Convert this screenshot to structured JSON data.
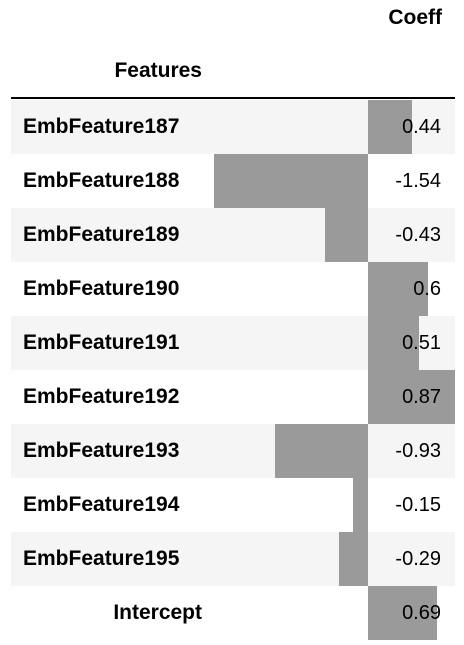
{
  "table": {
    "index_header": "Features",
    "column_header": "Coeff"
  },
  "chart_data": {
    "type": "table",
    "columns": [
      "Coeff"
    ],
    "bar_style": "in-cell bar, zero-aligned",
    "colors": {
      "bar": "#9a9a9a",
      "row_shade": "#f5f5f5"
    },
    "rows": [
      {
        "feature": "EmbFeature187",
        "value": 0.44,
        "label": "0.44"
      },
      {
        "feature": "EmbFeature188",
        "value": -1.54,
        "label": "-1.54"
      },
      {
        "feature": "EmbFeature189",
        "value": -0.43,
        "label": "-0.43"
      },
      {
        "feature": "EmbFeature190",
        "value": 0.6,
        "label": "0.6"
      },
      {
        "feature": "EmbFeature191",
        "value": 0.51,
        "label": "0.51"
      },
      {
        "feature": "EmbFeature192",
        "value": 0.87,
        "label": "0.87"
      },
      {
        "feature": "EmbFeature193",
        "value": -0.93,
        "label": "-0.93"
      },
      {
        "feature": "EmbFeature194",
        "value": -0.15,
        "label": "-0.15"
      },
      {
        "feature": "EmbFeature195",
        "value": -0.29,
        "label": "-0.29"
      },
      {
        "feature": "Intercept",
        "value": 0.69,
        "label": "0.69"
      }
    ]
  }
}
